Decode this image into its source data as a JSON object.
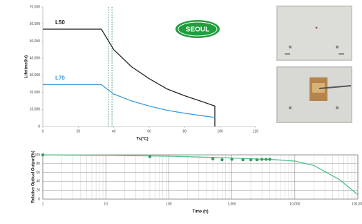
{
  "chart_data": [
    {
      "type": "line",
      "logo": "SEOUL",
      "xlabel": "Ts(°C)",
      "ylabel": "Lifetime(hr)",
      "xlim": [
        0,
        120
      ],
      "xticks": [
        0,
        20,
        40,
        60,
        80,
        100,
        120
      ],
      "ylim": [
        0,
        70000
      ],
      "yticks": [
        0,
        {
          "value": 10000,
          "label": "10,000"
        },
        {
          "value": 20000,
          "label": "20,000"
        },
        {
          "value": 30000,
          "label": "30,000"
        },
        {
          "value": 40000,
          "label": "40,000"
        },
        {
          "value": 50000,
          "label": "50,000"
        },
        {
          "value": 60000,
          "label": "60,000"
        },
        {
          "value": 70000,
          "label": "70,000"
        }
      ],
      "vlines": [
        37,
        39
      ],
      "series": [
        {
          "name": "L50",
          "color": "#222222",
          "x": [
            0,
            33,
            40,
            50,
            60,
            70,
            80,
            90,
            97,
            97
          ],
          "values": [
            57000,
            57000,
            45000,
            35000,
            28000,
            22000,
            18000,
            14500,
            12000,
            0
          ]
        },
        {
          "name": "L70",
          "color": "#3a9ad9",
          "x": [
            0,
            33,
            40,
            50,
            60,
            70,
            80,
            90,
            97
          ],
          "values": [
            24500,
            24500,
            19000,
            15000,
            12000,
            9500,
            7800,
            6300,
            5300
          ]
        }
      ]
    },
    {
      "type": "line",
      "log_x": true,
      "grid": true,
      "xlabel": "Time (h)",
      "ylabel": "Relative Optical Output(%)",
      "xlim": [
        1,
        100000
      ],
      "xticks": [
        1,
        10,
        100,
        {
          "value": 1000,
          "label": "1,000"
        },
        {
          "value": 10000,
          "label": "10,000"
        },
        {
          "value": 100000,
          "label": "100,000"
        }
      ],
      "ylim": [
        0,
        100
      ],
      "yticks": [
        0,
        20,
        40,
        60,
        80,
        100
      ],
      "series": [
        {
          "color": "#4cc08a",
          "markers": false,
          "x": [
            1,
            10,
            100,
            1000,
            5000,
            10000,
            20000,
            50000,
            100000
          ],
          "values": [
            100,
            99,
            97,
            93,
            89,
            86,
            76,
            45,
            10
          ]
        },
        {
          "color": "#2aa05a",
          "markers": true,
          "x": [
            1,
            50,
            500,
            700,
            1000,
            1500,
            2000,
            2500,
            3000,
            3500,
            4000
          ],
          "values": [
            100,
            96,
            91,
            89,
            90,
            89,
            89,
            89,
            90,
            90,
            90
          ]
        }
      ]
    }
  ]
}
